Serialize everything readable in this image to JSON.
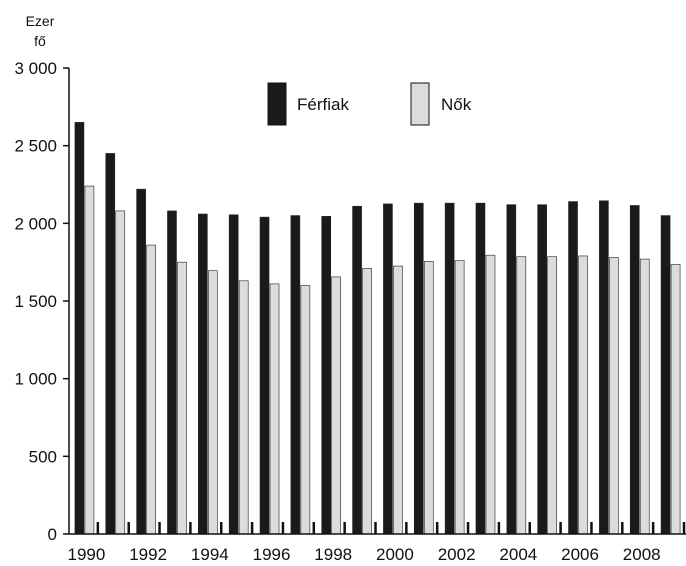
{
  "chart_data": {
    "type": "bar",
    "unit_label": [
      "Ezer",
      "fő"
    ],
    "categories": [
      "1990",
      "1991",
      "1992",
      "1993",
      "1994",
      "1995",
      "1996",
      "1997",
      "1998",
      "1999",
      "2000",
      "2001",
      "2002",
      "2003",
      "2004",
      "2005",
      "2006",
      "2007",
      "2008",
      "2009"
    ],
    "x_tick_labels": [
      "1990",
      "1992",
      "1994",
      "1996",
      "1998",
      "2000",
      "2002",
      "2004",
      "2006",
      "2008"
    ],
    "y_tick_labels": [
      "0",
      "500",
      "1 000",
      "1 500",
      "2 000",
      "2 500",
      "3 000"
    ],
    "y_ticks": [
      0,
      500,
      1000,
      1500,
      2000,
      2500,
      3000
    ],
    "ylim": [
      0,
      3000
    ],
    "legend_position": "top-center",
    "series": [
      {
        "name": "Férfiak",
        "color": "#1a1a1a",
        "values": [
          2650,
          2450,
          2220,
          2080,
          2060,
          2055,
          2040,
          2050,
          2045,
          2110,
          2125,
          2130,
          2130,
          2130,
          2120,
          2120,
          2140,
          2145,
          2115,
          2050
        ]
      },
      {
        "name": "Nők",
        "color": "#dcdcdc",
        "values": [
          2240,
          2080,
          1860,
          1750,
          1695,
          1630,
          1610,
          1600,
          1655,
          1710,
          1725,
          1755,
          1760,
          1795,
          1785,
          1785,
          1790,
          1780,
          1770,
          1735
        ]
      }
    ]
  }
}
